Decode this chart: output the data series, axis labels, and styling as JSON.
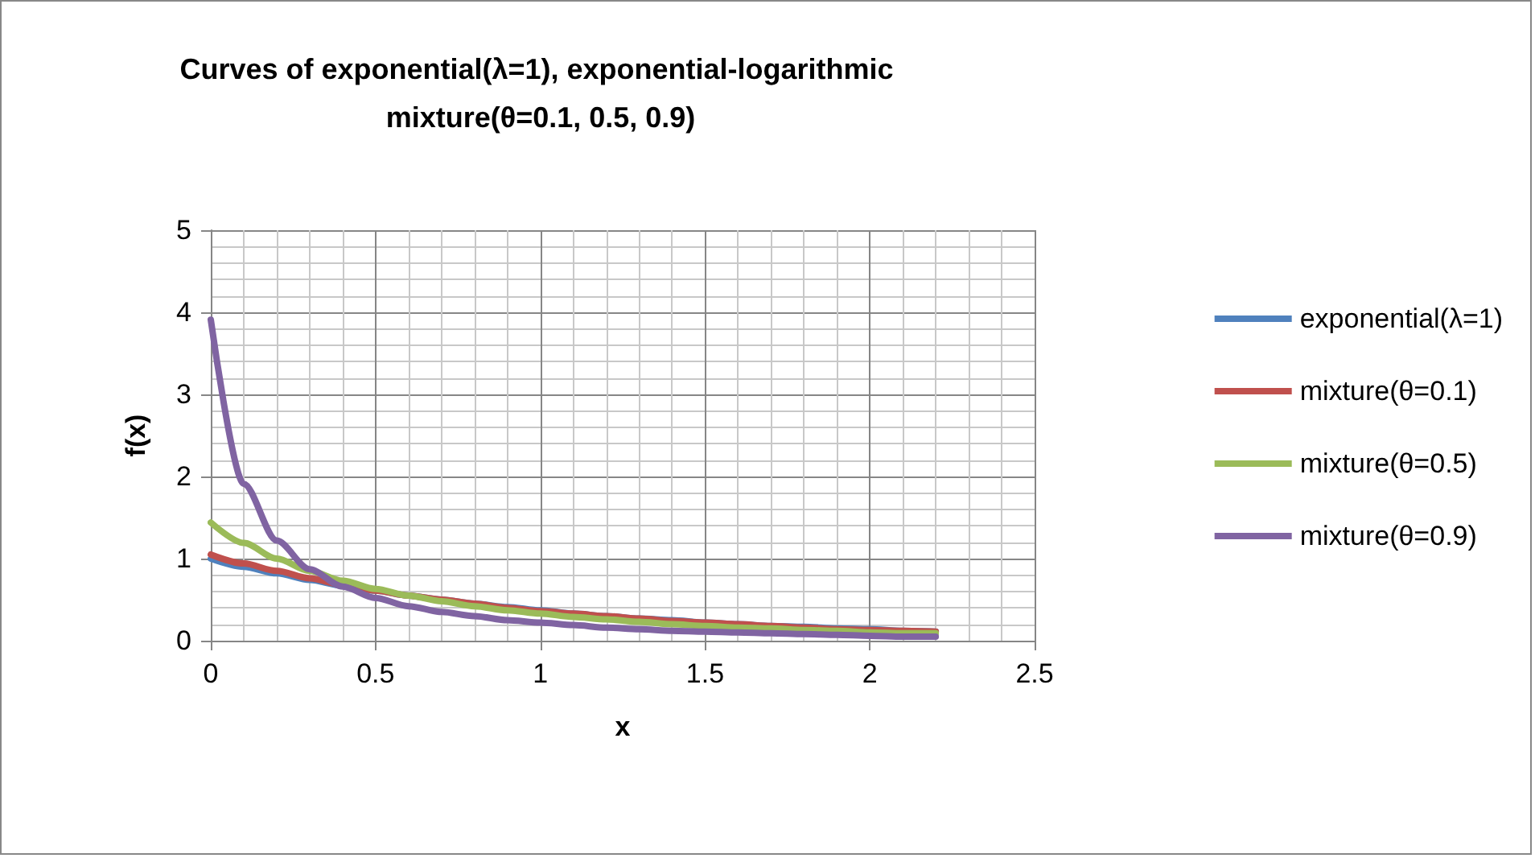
{
  "chart_data": {
    "type": "line",
    "title": "Curves of exponential(λ=1), exponential-logarithmic mixture(θ=0.1, 0.5, 0.9)",
    "xlabel": "x",
    "ylabel": "f(x)",
    "x": [
      0,
      0.1,
      0.2,
      0.3,
      0.4,
      0.5,
      0.6,
      0.7,
      0.8,
      0.9,
      1,
      1.1,
      1.2,
      1.3,
      1.4,
      1.5,
      1.6,
      1.7,
      1.8,
      1.9,
      2,
      2.1,
      2.2
    ],
    "series": [
      {
        "name": "exponential(λ=1)",
        "color": "#4f81bd",
        "values": [
          1,
          0.9,
          0.82,
          0.74,
          0.67,
          0.61,
          0.55,
          0.5,
          0.45,
          0.41,
          0.37,
          0.33,
          0.3,
          0.27,
          0.25,
          0.22,
          0.2,
          0.18,
          0.17,
          0.15,
          0.14,
          0.12,
          0.11
        ]
      },
      {
        "name": "mixture(θ=0.1)",
        "color": "#c0504d",
        "values": [
          1.05,
          0.94,
          0.85,
          0.76,
          0.68,
          0.61,
          0.55,
          0.5,
          0.45,
          0.4,
          0.36,
          0.33,
          0.3,
          0.27,
          0.24,
          0.22,
          0.2,
          0.18,
          0.16,
          0.14,
          0.13,
          0.12,
          0.11
        ]
      },
      {
        "name": "mixture(θ=0.5)",
        "color": "#9bbb59",
        "values": [
          1.44,
          1.19,
          1,
          0.85,
          0.73,
          0.63,
          0.55,
          0.48,
          0.42,
          0.37,
          0.33,
          0.29,
          0.26,
          0.23,
          0.2,
          0.18,
          0.16,
          0.15,
          0.13,
          0.12,
          0.1,
          0.09,
          0.09
        ]
      },
      {
        "name": "mixture(θ=0.9)",
        "color": "#8064a2",
        "values": [
          3.91,
          1.91,
          1.22,
          0.87,
          0.66,
          0.52,
          0.42,
          0.35,
          0.3,
          0.25,
          0.22,
          0.19,
          0.16,
          0.14,
          0.12,
          0.11,
          0.1,
          0.09,
          0.08,
          0.07,
          0.06,
          0.05,
          0.05
        ]
      }
    ],
    "xlim": [
      0,
      2.5
    ],
    "xticks": [
      0,
      0.5,
      1,
      1.5,
      2,
      2.5
    ],
    "ylim": [
      0,
      5
    ],
    "yticks": [
      0,
      1,
      2,
      3,
      4,
      5
    ],
    "grid": true,
    "legend": "right",
    "marker": "none",
    "line_style": "solid"
  }
}
